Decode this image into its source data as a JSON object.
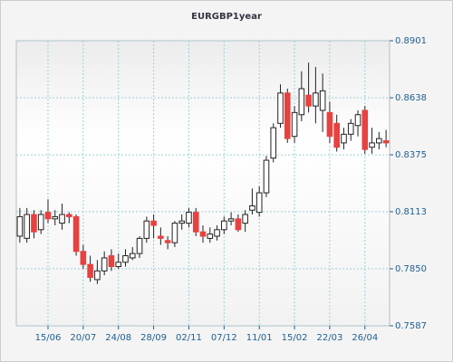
{
  "chart_data": {
    "type": "candlestick",
    "title": "EURGBP1year",
    "categories": [
      null,
      null,
      null,
      null,
      "15/06",
      null,
      null,
      null,
      null,
      "20/07",
      null,
      null,
      null,
      null,
      "24/08",
      null,
      null,
      null,
      null,
      "28/09",
      null,
      null,
      null,
      null,
      "02/11",
      null,
      null,
      null,
      null,
      "07/12",
      null,
      null,
      null,
      null,
      "11/01",
      null,
      null,
      null,
      null,
      "15/02",
      null,
      null,
      null,
      null,
      "22/03",
      null,
      null,
      null,
      null,
      "26/04",
      null,
      null,
      null
    ],
    "open": [
      0.8,
      0.799,
      0.81,
      0.803,
      0.811,
      0.808,
      0.806,
      0.81,
      0.809,
      0.793,
      0.787,
      0.78,
      0.784,
      0.791,
      0.786,
      0.788,
      0.79,
      0.792,
      0.799,
      0.807,
      0.8,
      0.798,
      0.797,
      0.806,
      0.806,
      0.811,
      0.802,
      0.799,
      0.8,
      0.803,
      0.807,
      0.808,
      0.806,
      0.812,
      0.811,
      0.82,
      0.836,
      0.852,
      0.866,
      0.846,
      0.856,
      0.865,
      0.86,
      0.858,
      0.857,
      0.852,
      0.843,
      0.847,
      0.851,
      0.858,
      0.841,
      0.843,
      0.844
    ],
    "close": [
      0.809,
      0.81,
      0.802,
      0.81,
      0.808,
      0.809,
      0.81,
      0.809,
      0.793,
      0.787,
      0.781,
      0.784,
      0.79,
      0.786,
      0.788,
      0.791,
      0.792,
      0.799,
      0.807,
      0.805,
      0.799,
      0.797,
      0.806,
      0.807,
      0.811,
      0.802,
      0.8,
      0.801,
      0.803,
      0.807,
      0.808,
      0.803,
      0.81,
      0.814,
      0.82,
      0.835,
      0.85,
      0.866,
      0.845,
      0.857,
      0.868,
      0.86,
      0.866,
      0.867,
      0.846,
      0.841,
      0.847,
      0.852,
      0.856,
      0.84,
      0.843,
      0.845,
      0.843
    ],
    "high": [
      0.813,
      0.813,
      0.812,
      0.812,
      0.817,
      0.812,
      0.815,
      0.811,
      0.81,
      0.796,
      0.791,
      0.789,
      0.793,
      0.794,
      0.792,
      0.794,
      0.795,
      0.8,
      0.809,
      0.81,
      0.804,
      0.8,
      0.807,
      0.81,
      0.813,
      0.813,
      0.805,
      0.804,
      0.805,
      0.809,
      0.811,
      0.81,
      0.812,
      0.822,
      0.823,
      0.837,
      0.852,
      0.87,
      0.868,
      0.86,
      0.876,
      0.88,
      0.878,
      0.875,
      0.862,
      0.856,
      0.85,
      0.854,
      0.858,
      0.86,
      0.85,
      0.848,
      0.849
    ],
    "low": [
      0.797,
      0.797,
      0.799,
      0.801,
      0.806,
      0.805,
      0.803,
      0.806,
      0.791,
      0.785,
      0.779,
      0.778,
      0.782,
      0.784,
      0.785,
      0.786,
      0.789,
      0.79,
      0.797,
      0.799,
      0.796,
      0.794,
      0.795,
      0.803,
      0.804,
      0.8,
      0.797,
      0.797,
      0.798,
      0.801,
      0.805,
      0.802,
      0.802,
      0.81,
      0.809,
      0.818,
      0.834,
      0.85,
      0.843,
      0.843,
      0.853,
      0.857,
      0.852,
      0.848,
      0.843,
      0.839,
      0.84,
      0.844,
      0.846,
      0.838,
      0.838,
      0.84,
      0.841
    ],
    "up_color": "#ffffff",
    "down_color": "#e8413f",
    "ylim": [
      0.7587,
      0.8901
    ],
    "yticks": [
      0.7587,
      {
        "value": 0.785,
        "label": "0.7850"
      },
      0.8113,
      0.8375,
      0.8638,
      0.8901
    ],
    "grid": true
  }
}
